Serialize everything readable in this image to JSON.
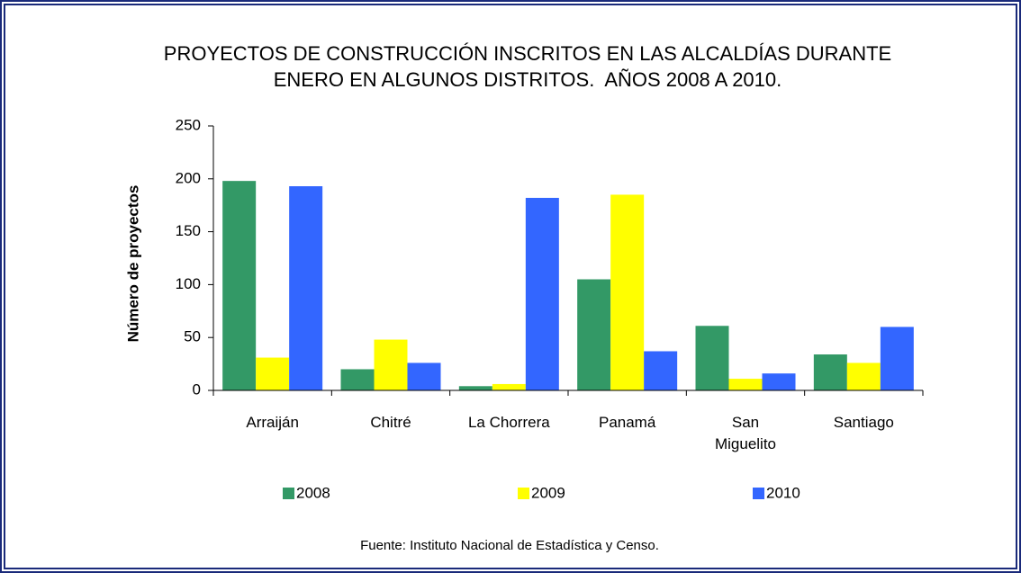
{
  "chart_data": {
    "type": "bar",
    "title": [
      "PROYECTOS DE CONSTRUCCIÓN INSCRITOS EN LAS ALCALDÍAS DURANTE",
      "ENERO EN ALGUNOS DISTRITOS.  AÑOS 2008 A 2010."
    ],
    "y_label": "Número de proyectos",
    "source": "Fuente: Instituto Nacional de Estadística y Censo.",
    "categories": [
      "Arraiján",
      "Chitré",
      "La Chorrera",
      "Panamá",
      "San Miguelito",
      "Santiago"
    ],
    "series": [
      {
        "name": "2008",
        "color": "#339966",
        "values": [
          198,
          20,
          4,
          105,
          61,
          34
        ]
      },
      {
        "name": "2009",
        "color": "#ffff00",
        "values": [
          31,
          48,
          6,
          185,
          11,
          26
        ]
      },
      {
        "name": "2010",
        "color": "#3366ff",
        "values": [
          193,
          26,
          182,
          37,
          16,
          60
        ]
      }
    ],
    "ylim": [
      0,
      250
    ],
    "yticks": [
      0,
      50,
      100,
      150,
      200,
      250
    ],
    "grid": false,
    "legend": "bottom"
  }
}
